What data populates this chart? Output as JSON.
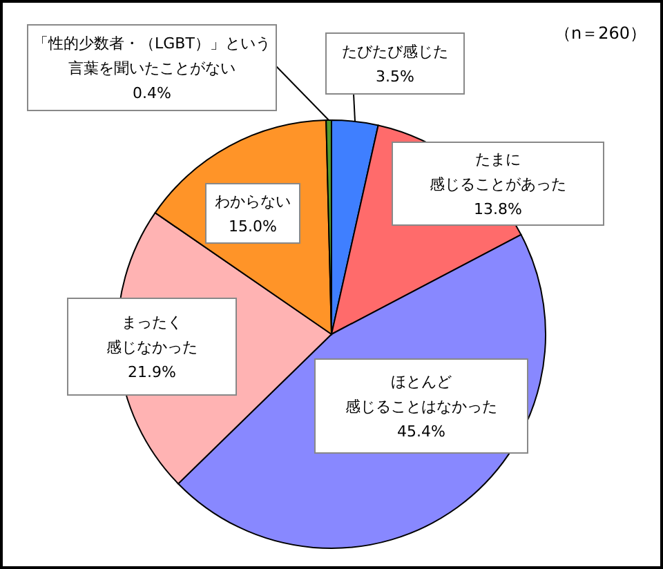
{
  "chart_data": {
    "type": "pie",
    "categories": [
      "たびたび感じた",
      "たまに感じることがあった",
      "ほとんど感じることはなかった",
      "まったく感じなかった",
      "わからない",
      "「性的少数者・（LGBT）」という言葉を聞いたことがない"
    ],
    "values": [
      3.5,
      13.8,
      45.4,
      21.9,
      15.0,
      0.4
    ],
    "colors": [
      "#3f7fff",
      "#ff6b6b",
      "#8888ff",
      "#ffb3b3",
      "#ff9428",
      "#4f9a2f"
    ],
    "value_labels": [
      "3.5%",
      "13.8%",
      "45.4%",
      "21.9%",
      "15.0%",
      "0.4%"
    ],
    "annotations": [
      "（n＝260）"
    ],
    "legend": false
  }
}
